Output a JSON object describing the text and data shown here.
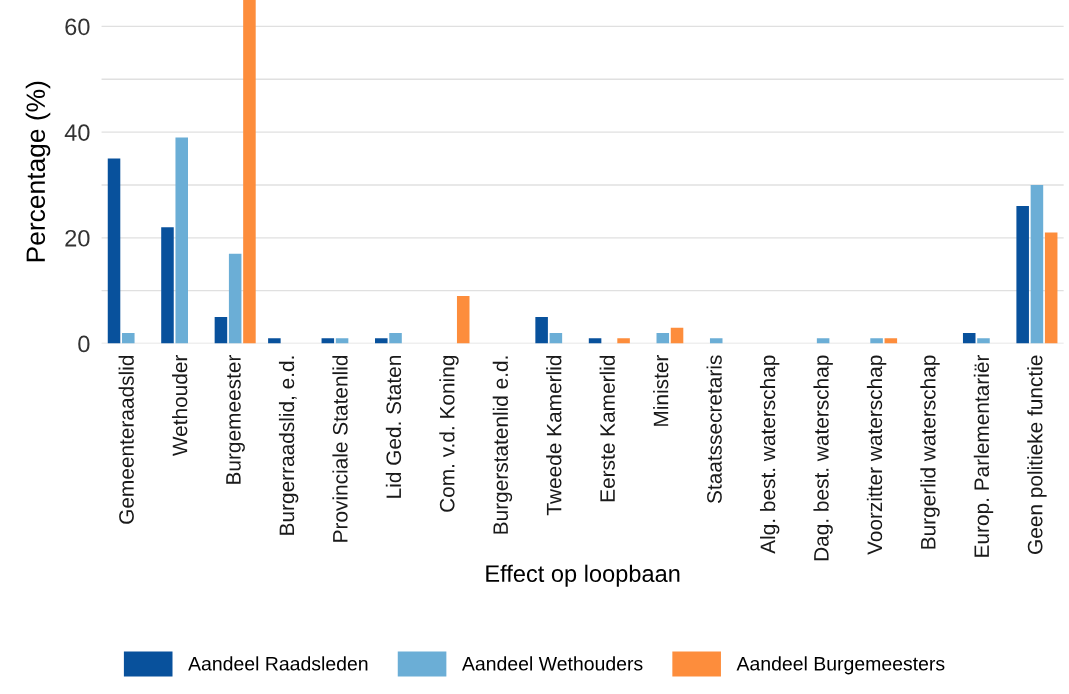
{
  "chart_data": {
    "type": "bar",
    "xlabel": "Effect op loopbaan",
    "ylabel": "Percentage (%)",
    "categories": [
      "Gemeenteraadslid",
      "Wethouder",
      "Burgemeester",
      "Burgerraadslid, e.d.",
      "Provinciale Statenlid",
      "Lid Ged. Staten",
      "Com. v.d. Koning",
      "Burgerstatenlid e.d.",
      "Tweede Kamerlid",
      "Eerste Kamerlid",
      "Minister",
      "Staatssecretaris",
      "Alg. best. waterschap",
      "Dag. best. waterschap",
      "Voorzitter waterschap",
      "Burgerlid waterschap",
      "Europ. Parlementariër",
      "Geen politieke functie"
    ],
    "series": [
      {
        "name": "Aandeel Raadsleden",
        "color": "#08519c",
        "values": [
          35,
          22,
          5,
          1,
          1,
          1,
          0,
          0,
          5,
          1,
          0,
          0,
          0,
          0,
          0,
          0,
          2,
          26
        ]
      },
      {
        "name": "Aandeel Wethouders",
        "color": "#6baed6",
        "values": [
          2,
          39,
          17,
          0,
          1,
          2,
          0,
          0,
          2,
          0,
          2,
          1,
          0,
          1,
          1,
          0,
          1,
          30
        ]
      },
      {
        "name": "Aandeel Burgemeesters",
        "color": "#fd8d3c",
        "values": [
          0,
          0,
          65,
          0,
          0,
          0,
          9,
          0,
          0,
          1,
          3,
          0,
          0,
          0,
          1,
          0,
          0,
          21
        ]
      }
    ],
    "ylim": [
      0,
      65
    ],
    "yticks": [
      0,
      {
        "value": 10,
        "label": null
      },
      20,
      {
        "value": 30,
        "label": null
      },
      40,
      {
        "value": 50,
        "label": null
      },
      60
    ],
    "grid": "y",
    "legend": "bottom"
  }
}
